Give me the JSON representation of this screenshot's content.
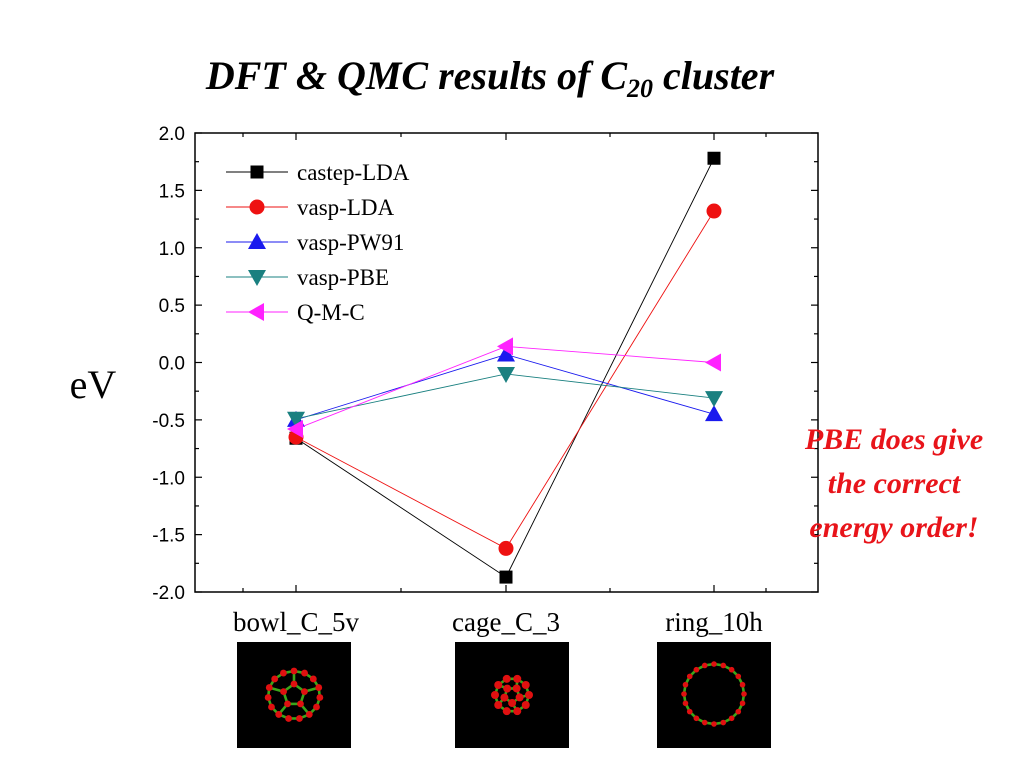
{
  "title": {
    "prefix": "DFT  & QMC results of C",
    "subscript": "20",
    "suffix": " cluster"
  },
  "annotation": [
    "PBE does give",
    "the correct",
    "energy order!"
  ],
  "colors": {
    "castep-LDA": "#000000",
    "vasp-LDA": "#ee1111",
    "vasp-PW91": "#1a1aee",
    "vasp-PBE": "#1a8080",
    "Q-M-C": "#ff22ff",
    "annotation": "#e8141a"
  },
  "chart_data": {
    "type": "line",
    "categories": [
      "bowl_C_5v",
      "cage_C_3",
      "ring_10h"
    ],
    "ylabel": "eV",
    "xlabel": "",
    "ylim": [
      -2.0,
      2.0
    ],
    "yticks": [
      "2.0",
      "1.5",
      "1.0",
      "0.5",
      "0.0",
      "-0.5",
      "-1.0",
      "-1.5",
      "-2.0"
    ],
    "grid": false,
    "legend_position": "top-left",
    "series": [
      {
        "name": "castep-LDA",
        "marker": "square",
        "values": [
          -0.66,
          -1.87,
          1.78
        ]
      },
      {
        "name": "vasp-LDA",
        "marker": "circle",
        "values": [
          -0.65,
          -1.62,
          1.32
        ]
      },
      {
        "name": "vasp-PW91",
        "marker": "triangle-up",
        "values": [
          -0.5,
          0.07,
          -0.45
        ]
      },
      {
        "name": "vasp-PBE",
        "marker": "triangle-down",
        "values": [
          -0.49,
          -0.1,
          -0.31
        ]
      },
      {
        "name": "Q-M-C",
        "marker": "triangle-left",
        "values": [
          -0.58,
          0.14,
          0.0
        ]
      }
    ]
  },
  "structure_images": [
    {
      "label": "bowl_C_5v",
      "kind": "bowl-icon"
    },
    {
      "label": "cage_C_3",
      "kind": "cage-icon"
    },
    {
      "label": "ring_10h",
      "kind": "ring-icon"
    }
  ]
}
